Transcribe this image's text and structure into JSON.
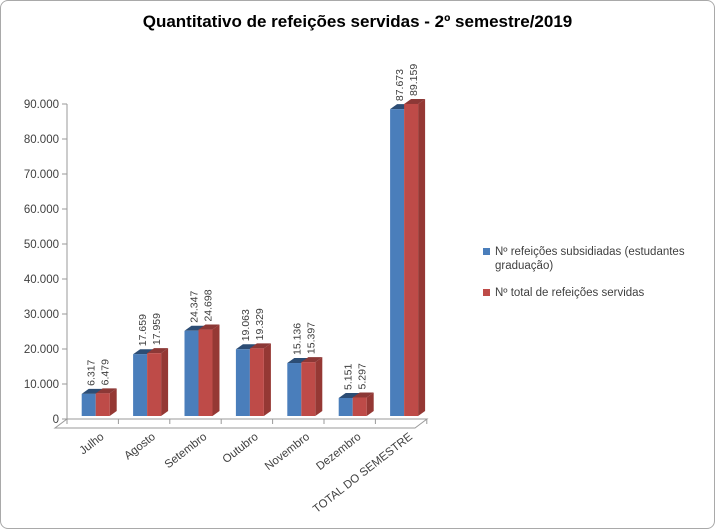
{
  "chart_data": {
    "type": "bar",
    "subtype": "3d-clustered-column",
    "title": "Quantitativo de refeições servidas - 2º semestre/2019",
    "categories": [
      "Julho",
      "Agosto",
      "Setembro",
      "Outubro",
      "Novembro",
      "Dezembro",
      "TOTAL DO SEMESTRE"
    ],
    "series": [
      {
        "name": "Nº refeições subsidiadas (estudantes graduação)",
        "values": [
          6317,
          17659,
          24347,
          19063,
          15136,
          5151,
          87673
        ],
        "labels": [
          "6.317",
          "17.659",
          "24.347",
          "19.063",
          "15.136",
          "5.151",
          "87.673"
        ],
        "color": "#4a7ebb"
      },
      {
        "name": "Nº total  de refeições servidas",
        "values": [
          6479,
          17959,
          24698,
          19329,
          15397,
          5297,
          89159
        ],
        "labels": [
          "6.479",
          "17.959",
          "24.698",
          "19.329",
          "15.397",
          "5.297",
          "89.159"
        ],
        "color": "#be4b48"
      }
    ],
    "xlabel": "",
    "ylabel": "",
    "ylim": [
      0,
      90000
    ],
    "ytick_step": 10000,
    "ytick_labels": [
      "0",
      "10.000",
      "20.000",
      "30.000",
      "40.000",
      "50.000",
      "60.000",
      "70.000",
      "80.000",
      "90.000"
    ],
    "grid": false,
    "legend_position": "right",
    "number_format": "thousands-dot",
    "data_labels_rotation": "vertical",
    "category_labels_rotation": "diagonal"
  },
  "legend": {
    "items": [
      {
        "label": "Nº refeições subsidiadas (estudantes graduação)",
        "swatch": "blue-square-icon",
        "color": "#4a7ebb"
      },
      {
        "label": "Nº total  de refeições servidas",
        "swatch": "red-square-icon",
        "color": "#be4b48"
      }
    ]
  },
  "colors": {
    "series1_front": "#4a7ebb",
    "series1_top": "#2c4d75",
    "series1_side": "#38639b",
    "series2_front": "#be4b48",
    "series2_top": "#8c3836",
    "series2_side": "#953834",
    "axis": "#9a9a9a",
    "tick_label": "#3f3f3f",
    "data_label": "#3d3d3d",
    "border": "#a9a9a9",
    "background": "#ffffff"
  }
}
